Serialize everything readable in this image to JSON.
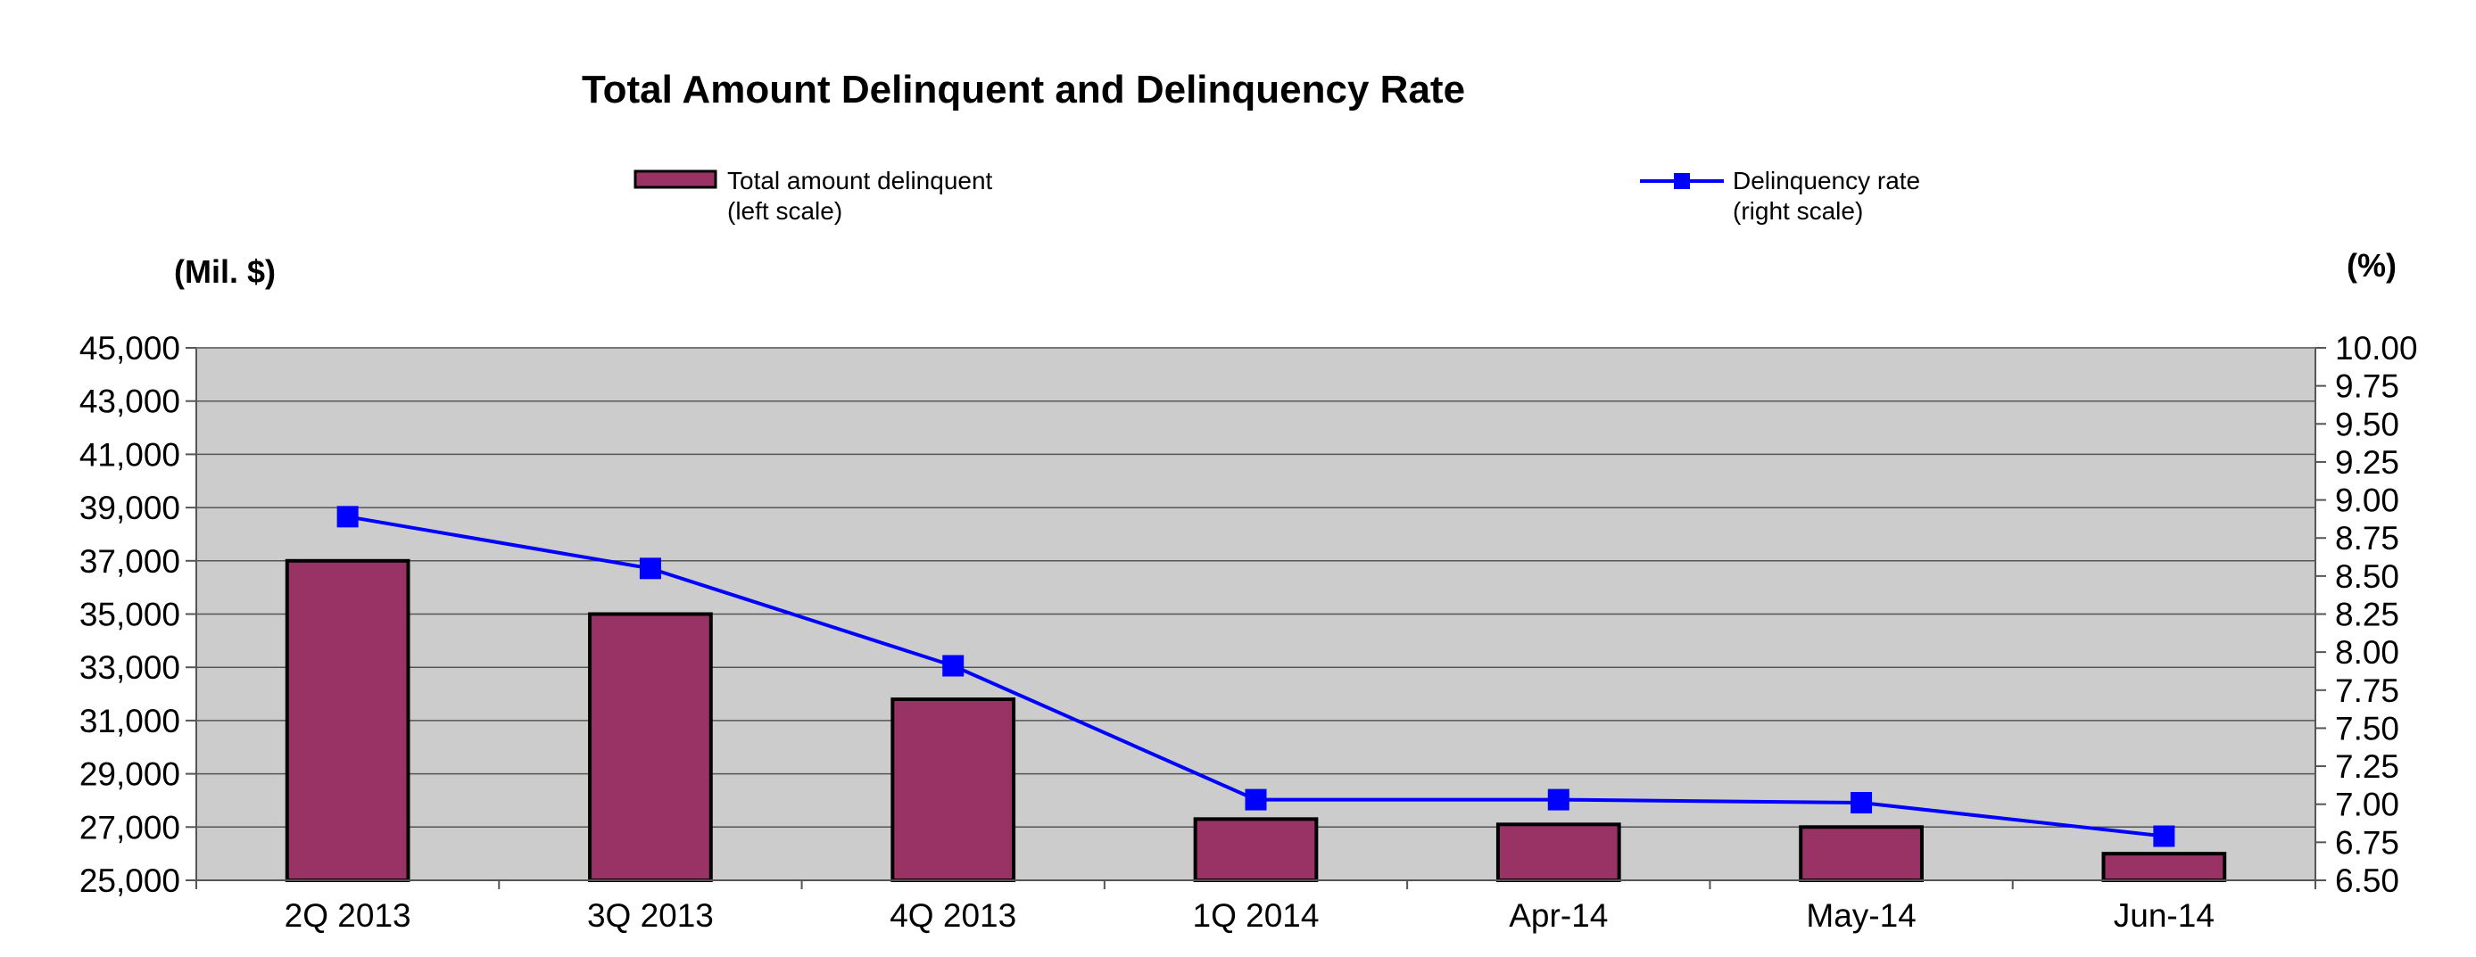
{
  "chart_data": {
    "type": "bar",
    "title": "Total Amount Delinquent and Delinquency Rate",
    "left_axis_unit": "(Mil. $)",
    "right_axis_unit": "(%)",
    "categories": [
      "2Q 2013",
      "3Q 2013",
      "4Q 2013",
      "1Q 2014",
      "Apr-14",
      "May-14",
      "Jun-14"
    ],
    "series": [
      {
        "name": "Total amount delinquent",
        "legend_note": "(left scale)",
        "type": "bar",
        "axis": "left",
        "color": "#993366",
        "values": [
          37000,
          35000,
          31800,
          27300,
          27100,
          27000,
          26000
        ]
      },
      {
        "name": "Delinquency rate",
        "legend_note": "(right scale)",
        "type": "line",
        "axis": "right",
        "color": "#0000ff",
        "values": [
          8.89,
          8.55,
          7.91,
          7.03,
          7.03,
          7.01,
          6.79
        ]
      }
    ],
    "left_ylim": [
      25000,
      45000
    ],
    "left_ticks": [
      "25,000",
      "27,000",
      "29,000",
      "31,000",
      "33,000",
      "35,000",
      "37,000",
      "39,000",
      "41,000",
      "43,000",
      "45,000"
    ],
    "right_ylim": [
      6.5,
      10.0
    ],
    "right_ticks": [
      "6.50",
      "6.75",
      "7.00",
      "7.25",
      "7.50",
      "7.75",
      "8.00",
      "8.25",
      "8.50",
      "8.75",
      "9.00",
      "9.25",
      "9.50",
      "9.75",
      "10.00"
    ],
    "grid": true,
    "plot_background": "#cccccc",
    "legend_position": "top"
  }
}
